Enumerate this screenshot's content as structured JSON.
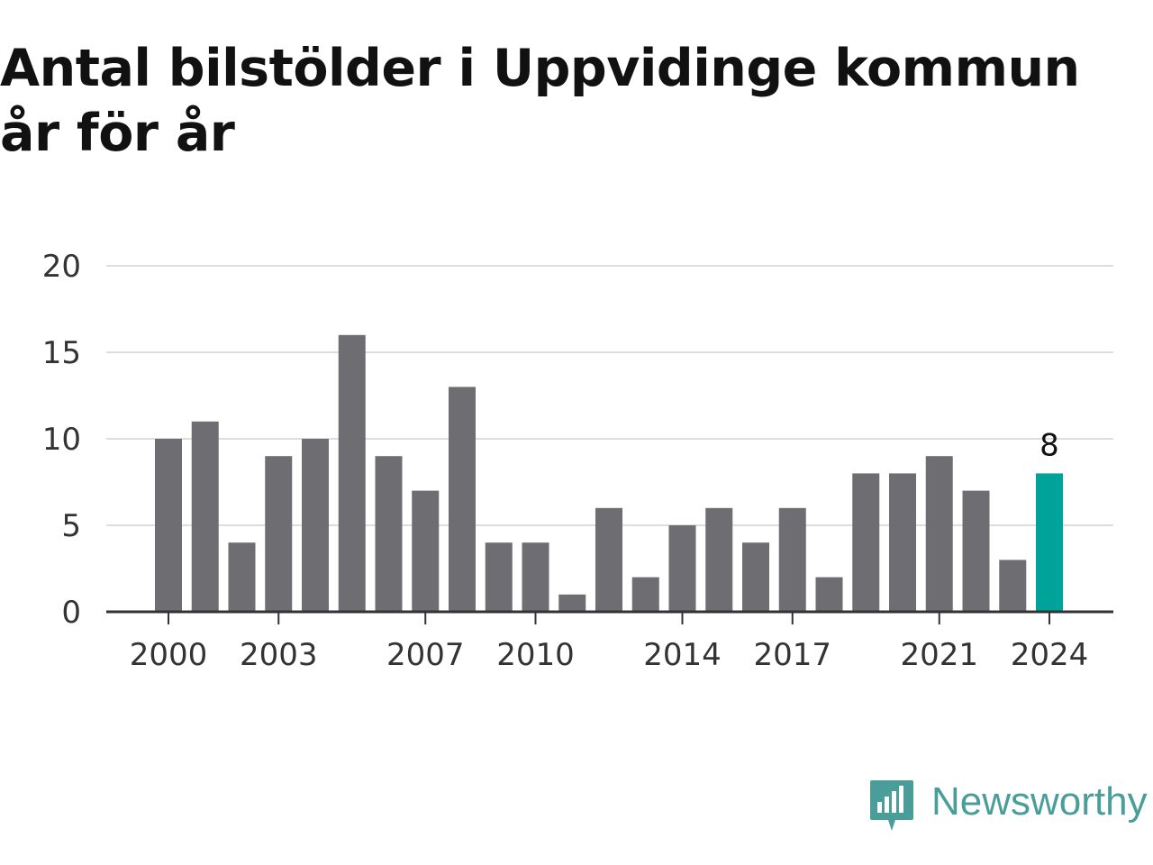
{
  "title": "Antal bilstölder i Uppvidinge kommun år för år",
  "logo": {
    "text": "Newsworthy",
    "icon": "newsworthy-chart-bubble-icon",
    "color": "#4a9e9a"
  },
  "chart_data": {
    "type": "bar",
    "title": "Antal bilstölder i Uppvidinge kommun år för år",
    "categories": [
      "2000",
      "2001",
      "2002",
      "2003",
      "2004",
      "2005",
      "2006",
      "2007",
      "2008",
      "2009",
      "2010",
      "2011",
      "2012",
      "2013",
      "2014",
      "2015",
      "2016",
      "2017",
      "2018",
      "2019",
      "2020",
      "2021",
      "2022",
      "2023",
      "2024"
    ],
    "values": [
      10,
      11,
      4,
      9,
      10,
      16,
      9,
      7,
      13,
      4,
      4,
      1,
      6,
      2,
      5,
      6,
      4,
      6,
      2,
      8,
      8,
      9,
      7,
      3,
      8
    ],
    "x_tick_labels": [
      "2000",
      "2003",
      "2007",
      "2010",
      "2014",
      "2017",
      "2021",
      "2024"
    ],
    "y_ticks": [
      0,
      5,
      10,
      15,
      20
    ],
    "ylim": [
      0,
      20
    ],
    "grid": true,
    "highlight": {
      "category": "2024",
      "label": "8"
    },
    "colors": {
      "bar": "#6e6d72",
      "highlight": "#00a39a",
      "grid": "#dddddd",
      "axis": "#333333"
    },
    "xlabel": "",
    "ylabel": ""
  }
}
